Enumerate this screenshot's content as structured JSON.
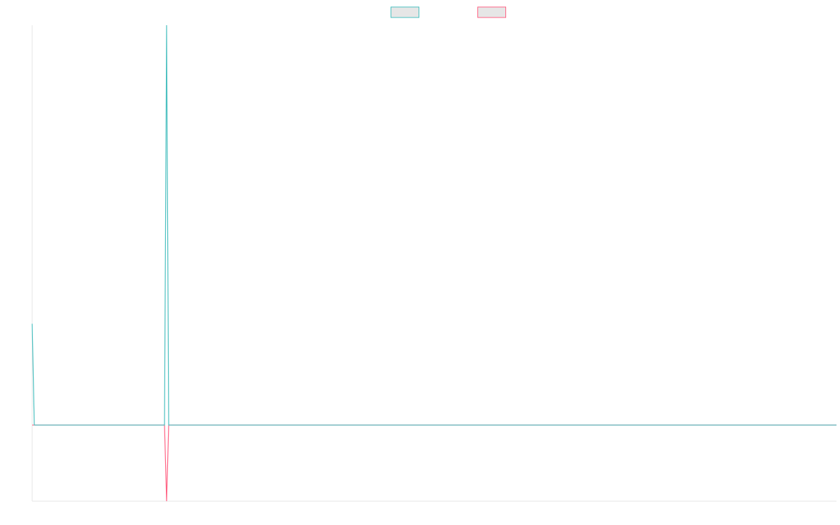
{
  "chart_data": {
    "type": "line",
    "x": [
      0,
      1,
      63,
      64,
      65,
      383
    ],
    "xlim": [
      0,
      383
    ],
    "ylim": [
      -1,
      5.25
    ],
    "grid": false,
    "legend": "top",
    "series": [
      {
        "color": "#4bc0c0",
        "values": [
          1.33,
          0,
          0,
          5.25,
          0,
          0
        ]
      },
      {
        "color": "#ff6384",
        "values": [
          0,
          0,
          0,
          -1,
          0,
          0
        ]
      }
    ]
  }
}
